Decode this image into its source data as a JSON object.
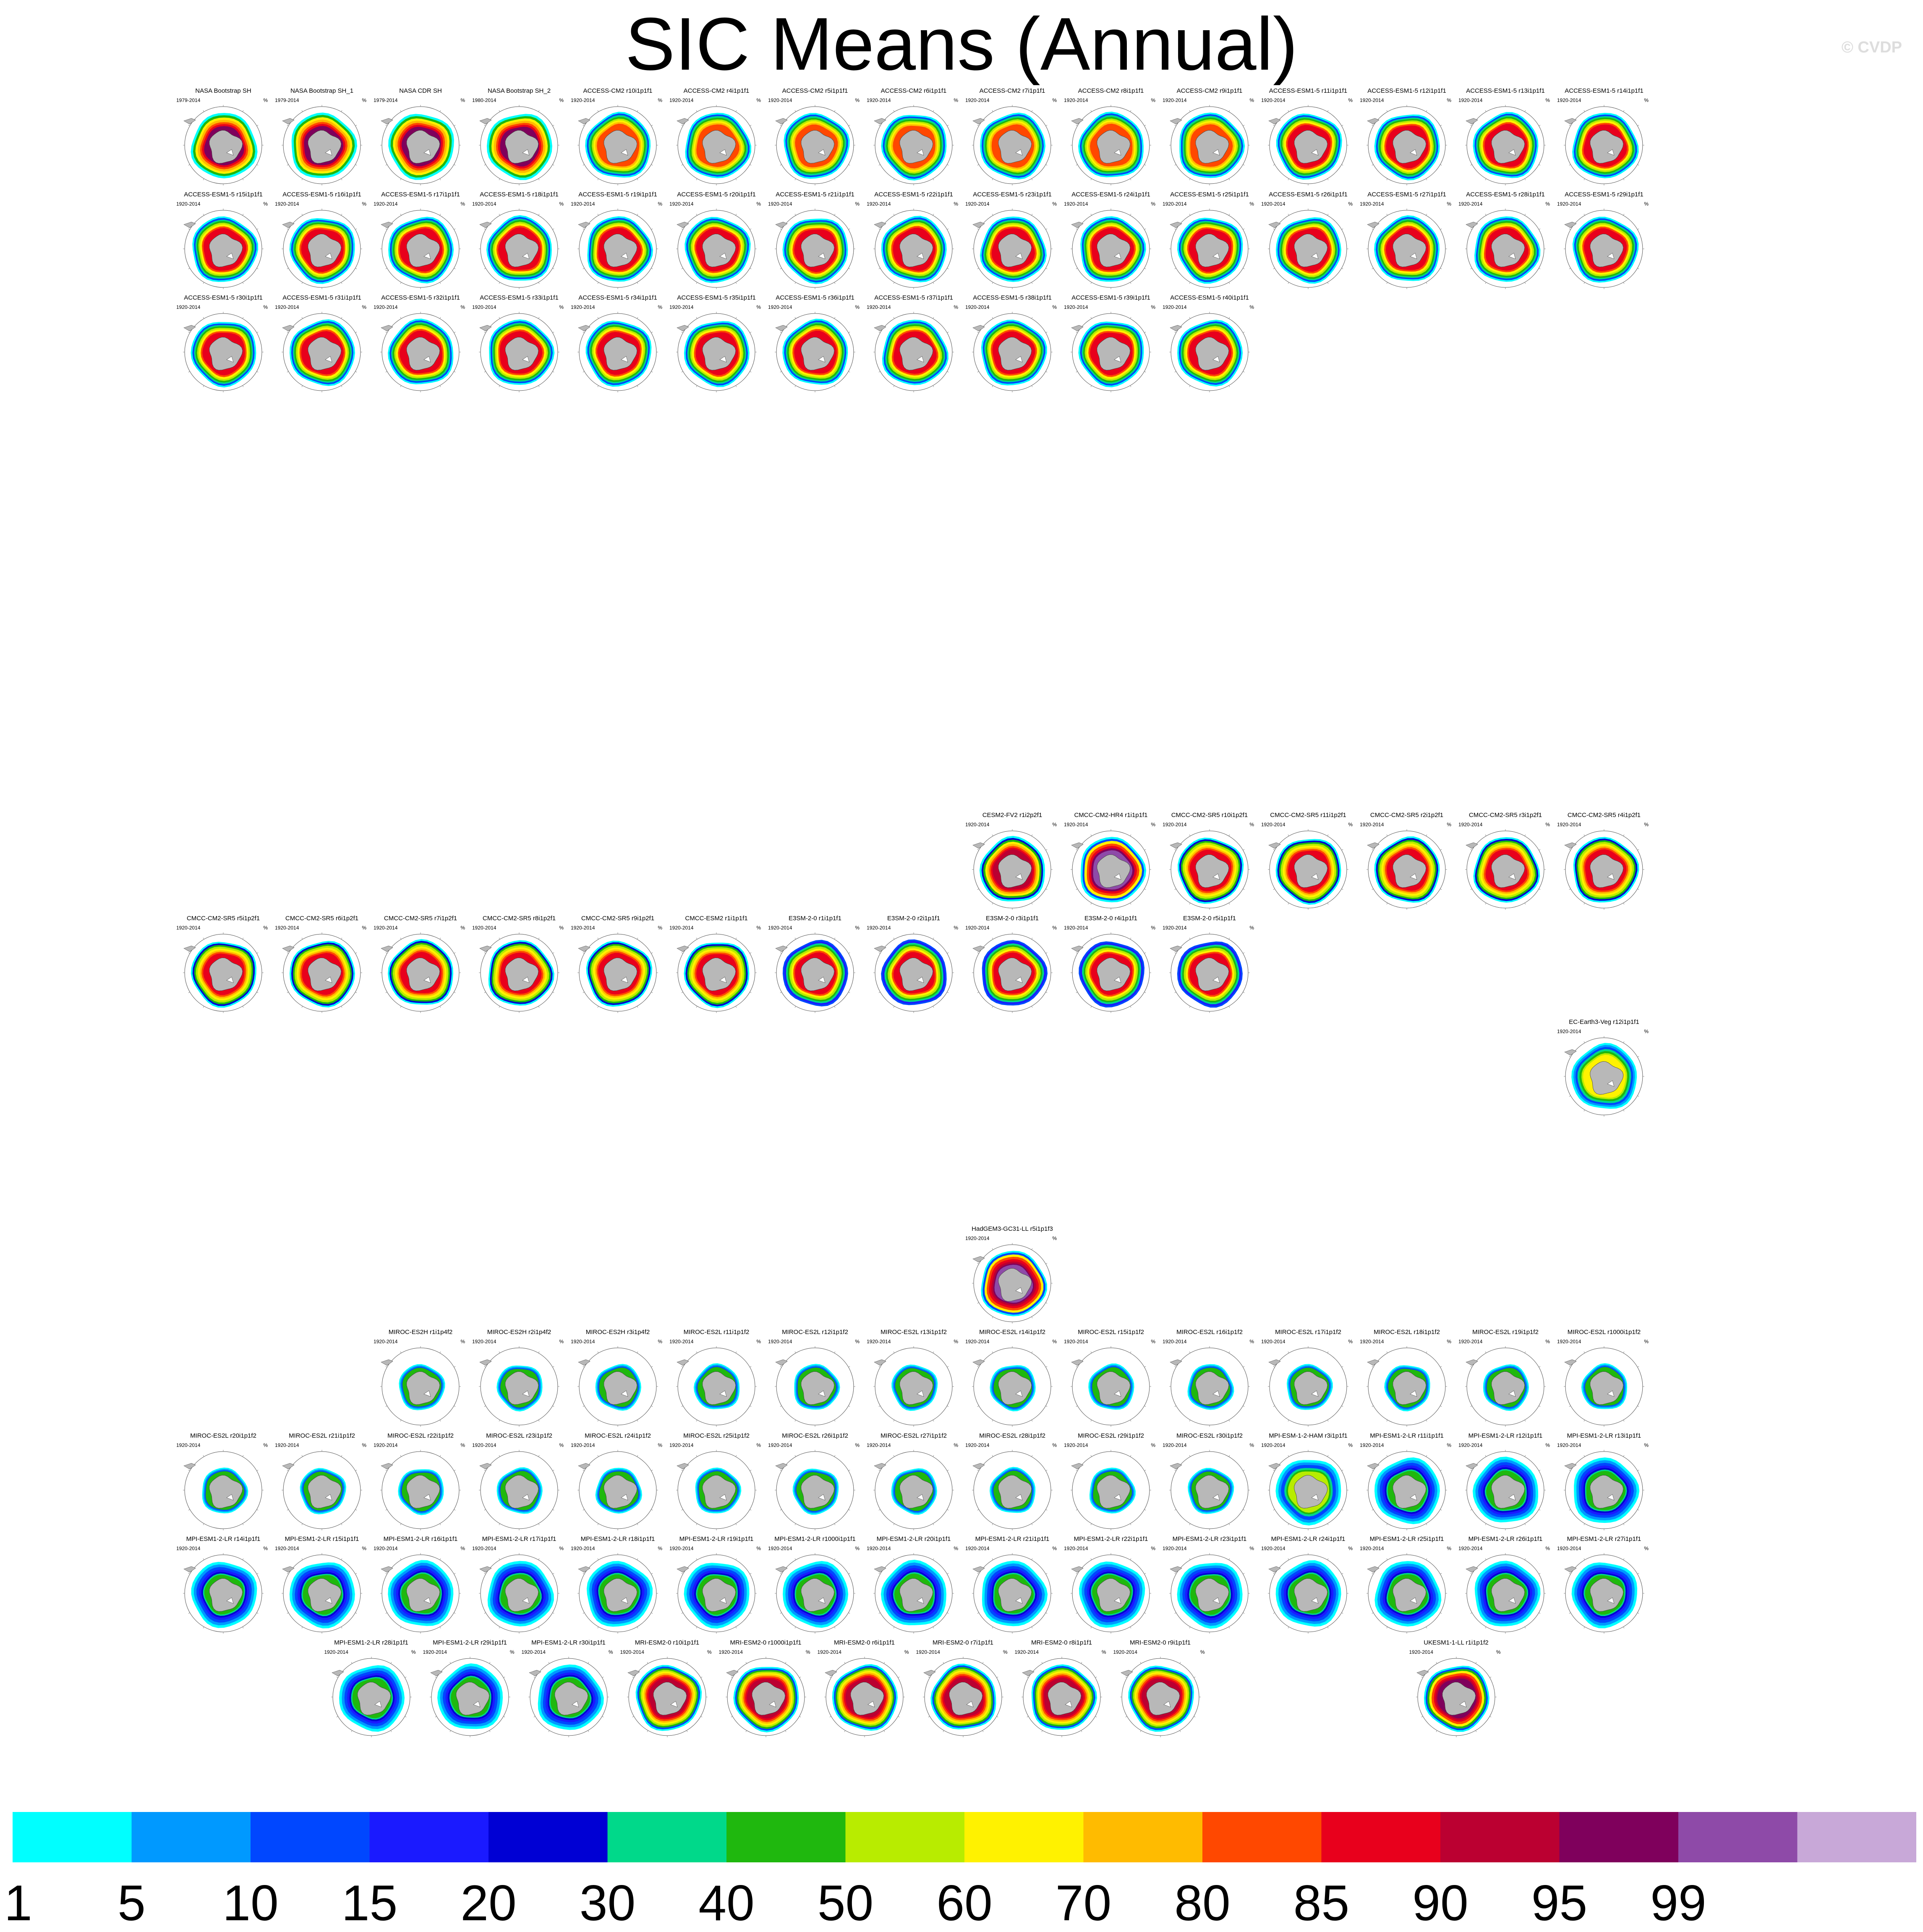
{
  "title": "SIC Means (Annual)",
  "watermark": "© CVDP",
  "chart_data": {
    "type": "heatmap",
    "title": "SIC Means (Annual)",
    "projection": "south polar stereographic",
    "variable": "sea ice concentration",
    "units": "%",
    "colorbar": {
      "orientation": "horizontal",
      "position": "bottom",
      "levels": [
        "1",
        "5",
        "10",
        "15",
        "20",
        "30",
        "40",
        "50",
        "60",
        "70",
        "80",
        "85",
        "90",
        "95",
        "99"
      ],
      "colors": [
        "#00ffff",
        "#0099ff",
        "#0047ff",
        "#1a1aff",
        "#0000d4",
        "#00d98a",
        "#1fb80e",
        "#b8ec00",
        "#fff200",
        "#ffbb00",
        "#ff4800",
        "#e8001c",
        "#bb0031",
        "#7f005c",
        "#8e4aa8",
        "#c8a8d8"
      ]
    },
    "panels": [
      {
        "row": 0,
        "col": 0,
        "title": "NASA Bootstrap SH",
        "period": "1979-2014",
        "style": "obs"
      },
      {
        "row": 0,
        "col": 1,
        "title": "NASA Bootstrap SH_1",
        "period": "1979-2014",
        "style": "obs"
      },
      {
        "row": 0,
        "col": 2,
        "title": "NASA CDR SH",
        "period": "1979-2014",
        "style": "obs"
      },
      {
        "row": 0,
        "col": 3,
        "title": "NASA Bootstrap SH_2",
        "period": "1980-2014",
        "style": "obs"
      },
      {
        "row": 0,
        "col": 4,
        "title": "ACCESS-CM2 r10i1p1f1",
        "period": "1920-2014",
        "style": "access"
      },
      {
        "row": 0,
        "col": 5,
        "title": "ACCESS-CM2 r4i1p1f1",
        "period": "1920-2014",
        "style": "access"
      },
      {
        "row": 0,
        "col": 6,
        "title": "ACCESS-CM2 r5i1p1f1",
        "period": "1920-2014",
        "style": "access"
      },
      {
        "row": 0,
        "col": 7,
        "title": "ACCESS-CM2 r6i1p1f1",
        "period": "1920-2014",
        "style": "access"
      },
      {
        "row": 0,
        "col": 8,
        "title": "ACCESS-CM2 r7i1p1f1",
        "period": "1920-2014",
        "style": "access"
      },
      {
        "row": 0,
        "col": 9,
        "title": "ACCESS-CM2 r8i1p1f1",
        "period": "1920-2014",
        "style": "access"
      },
      {
        "row": 0,
        "col": 10,
        "title": "ACCESS-CM2 r9i1p1f1",
        "period": "1920-2014",
        "style": "access"
      },
      {
        "row": 0,
        "col": 11,
        "title": "ACCESS-ESM1-5 r11i1p1f1",
        "period": "1920-2014",
        "style": "esm"
      },
      {
        "row": 0,
        "col": 12,
        "title": "ACCESS-ESM1-5 r12i1p1f1",
        "period": "1920-2014",
        "style": "esm"
      },
      {
        "row": 0,
        "col": 13,
        "title": "ACCESS-ESM1-5 r13i1p1f1",
        "period": "1920-2014",
        "style": "esm"
      },
      {
        "row": 0,
        "col": 14,
        "title": "ACCESS-ESM1-5 r14i1p1f1",
        "period": "1920-2014",
        "style": "esm"
      },
      {
        "row": 1,
        "col": 0,
        "title": "ACCESS-ESM1-5 r15i1p1f1",
        "period": "1920-2014",
        "style": "esm"
      },
      {
        "row": 1,
        "col": 1,
        "title": "ACCESS-ESM1-5 r16i1p1f1",
        "period": "1920-2014",
        "style": "esm"
      },
      {
        "row": 1,
        "col": 2,
        "title": "ACCESS-ESM1-5 r17i1p1f1",
        "period": "1920-2014",
        "style": "esm"
      },
      {
        "row": 1,
        "col": 3,
        "title": "ACCESS-ESM1-5 r18i1p1f1",
        "period": "1920-2014",
        "style": "esm"
      },
      {
        "row": 1,
        "col": 4,
        "title": "ACCESS-ESM1-5 r19i1p1f1",
        "period": "1920-2014",
        "style": "esm"
      },
      {
        "row": 1,
        "col": 5,
        "title": "ACCESS-ESM1-5 r20i1p1f1",
        "period": "1920-2014",
        "style": "esm"
      },
      {
        "row": 1,
        "col": 6,
        "title": "ACCESS-ESM1-5 r21i1p1f1",
        "period": "1920-2014",
        "style": "esm"
      },
      {
        "row": 1,
        "col": 7,
        "title": "ACCESS-ESM1-5 r22i1p1f1",
        "period": "1920-2014",
        "style": "esm"
      },
      {
        "row": 1,
        "col": 8,
        "title": "ACCESS-ESM1-5 r23i1p1f1",
        "period": "1920-2014",
        "style": "esm"
      },
      {
        "row": 1,
        "col": 9,
        "title": "ACCESS-ESM1-5 r24i1p1f1",
        "period": "1920-2014",
        "style": "esm"
      },
      {
        "row": 1,
        "col": 10,
        "title": "ACCESS-ESM1-5 r25i1p1f1",
        "period": "1920-2014",
        "style": "esm"
      },
      {
        "row": 1,
        "col": 11,
        "title": "ACCESS-ESM1-5 r26i1p1f1",
        "period": "1920-2014",
        "style": "esm"
      },
      {
        "row": 1,
        "col": 12,
        "title": "ACCESS-ESM1-5 r27i1p1f1",
        "period": "1920-2014",
        "style": "esm"
      },
      {
        "row": 1,
        "col": 13,
        "title": "ACCESS-ESM1-5 r28i1p1f1",
        "period": "1920-2014",
        "style": "esm"
      },
      {
        "row": 1,
        "col": 14,
        "title": "ACCESS-ESM1-5 r29i1p1f1",
        "period": "1920-2014",
        "style": "esm"
      },
      {
        "row": 2,
        "col": 0,
        "title": "ACCESS-ESM1-5 r30i1p1f1",
        "period": "1920-2014",
        "style": "esm"
      },
      {
        "row": 2,
        "col": 1,
        "title": "ACCESS-ESM1-5 r31i1p1f1",
        "period": "1920-2014",
        "style": "esm"
      },
      {
        "row": 2,
        "col": 2,
        "title": "ACCESS-ESM1-5 r32i1p1f1",
        "period": "1920-2014",
        "style": "esm"
      },
      {
        "row": 2,
        "col": 3,
        "title": "ACCESS-ESM1-5 r33i1p1f1",
        "period": "1920-2014",
        "style": "esm"
      },
      {
        "row": 2,
        "col": 4,
        "title": "ACCESS-ESM1-5 r34i1p1f1",
        "period": "1920-2014",
        "style": "esm"
      },
      {
        "row": 2,
        "col": 5,
        "title": "ACCESS-ESM1-5 r35i1p1f1",
        "period": "1920-2014",
        "style": "esm"
      },
      {
        "row": 2,
        "col": 6,
        "title": "ACCESS-ESM1-5 r36i1p1f1",
        "period": "1920-2014",
        "style": "esm"
      },
      {
        "row": 2,
        "col": 7,
        "title": "ACCESS-ESM1-5 r37i1p1f1",
        "period": "1920-2014",
        "style": "esm"
      },
      {
        "row": 2,
        "col": 8,
        "title": "ACCESS-ESM1-5 r38i1p1f1",
        "period": "1920-2014",
        "style": "esm"
      },
      {
        "row": 2,
        "col": 9,
        "title": "ACCESS-ESM1-5 r39i1p1f1",
        "period": "1920-2014",
        "style": "esm"
      },
      {
        "row": 2,
        "col": 10,
        "title": "ACCESS-ESM1-5 r40i1p1f1",
        "period": "1920-2014",
        "style": "esm"
      },
      {
        "row": 7,
        "col": 8,
        "title": "CESM2-FV2 r1i2p2f1",
        "period": "1920-2014",
        "style": "cesm"
      },
      {
        "row": 7,
        "col": 9,
        "title": "CMCC-CM2-HR4 r1i1p1f1",
        "period": "1920-2014",
        "style": "cmcchr"
      },
      {
        "row": 7,
        "col": 10,
        "title": "CMCC-CM2-SR5 r10i1p2f1",
        "period": "1920-2014",
        "style": "cmcc"
      },
      {
        "row": 7,
        "col": 11,
        "title": "CMCC-CM2-SR5 r11i1p2f1",
        "period": "1920-2014",
        "style": "cmcc"
      },
      {
        "row": 7,
        "col": 12,
        "title": "CMCC-CM2-SR5 r2i1p2f1",
        "period": "1920-2014",
        "style": "cmcc"
      },
      {
        "row": 7,
        "col": 13,
        "title": "CMCC-CM2-SR5 r3i1p2f1",
        "period": "1920-2014",
        "style": "cmcc"
      },
      {
        "row": 7,
        "col": 14,
        "title": "CMCC-CM2-SR5 r4i1p2f1",
        "period": "1920-2014",
        "style": "cmcc"
      },
      {
        "row": 8,
        "col": 0,
        "title": "CMCC-CM2-SR5 r5i1p2f1",
        "period": "1920-2014",
        "style": "cmcc"
      },
      {
        "row": 8,
        "col": 1,
        "title": "CMCC-CM2-SR5 r6i1p2f1",
        "period": "1920-2014",
        "style": "cmcc"
      },
      {
        "row": 8,
        "col": 2,
        "title": "CMCC-CM2-SR5 r7i1p2f1",
        "period": "1920-2014",
        "style": "cmcc"
      },
      {
        "row": 8,
        "col": 3,
        "title": "CMCC-CM2-SR5 r8i1p2f1",
        "period": "1920-2014",
        "style": "cmcc"
      },
      {
        "row": 8,
        "col": 4,
        "title": "CMCC-CM2-SR5 r9i1p2f1",
        "period": "1920-2014",
        "style": "cmcc"
      },
      {
        "row": 8,
        "col": 5,
        "title": "CMCC-ESM2 r1i1p1f1",
        "period": "1920-2014",
        "style": "cmcc"
      },
      {
        "row": 8,
        "col": 6,
        "title": "E3SM-2-0 r1i1p1f1",
        "period": "1920-2014",
        "style": "e3sm"
      },
      {
        "row": 8,
        "col": 7,
        "title": "E3SM-2-0 r2i1p1f1",
        "period": "1920-2014",
        "style": "e3sm"
      },
      {
        "row": 8,
        "col": 8,
        "title": "E3SM-2-0 r3i1p1f1",
        "period": "1920-2014",
        "style": "e3sm"
      },
      {
        "row": 8,
        "col": 9,
        "title": "E3SM-2-0 r4i1p1f1",
        "period": "1920-2014",
        "style": "e3sm"
      },
      {
        "row": 8,
        "col": 10,
        "title": "E3SM-2-0 r5i1p1f1",
        "period": "1920-2014",
        "style": "e3sm"
      },
      {
        "row": 9,
        "col": 14,
        "title": "EC-Earth3-Veg r12i1p1f1",
        "period": "1920-2014",
        "style": "ecearth"
      },
      {
        "row": 11,
        "col": 8,
        "title": "HadGEM3-GC31-LL r5i1p1f3",
        "period": "1920-2014",
        "style": "hadgem"
      },
      {
        "row": 12,
        "col": 2,
        "title": "MIROC-ES2H r1i1p4f2",
        "period": "1920-2014",
        "style": "miroc"
      },
      {
        "row": 12,
        "col": 3,
        "title": "MIROC-ES2H r2i1p4f2",
        "period": "1920-2014",
        "style": "miroc"
      },
      {
        "row": 12,
        "col": 4,
        "title": "MIROC-ES2H r3i1p4f2",
        "period": "1920-2014",
        "style": "miroc"
      },
      {
        "row": 12,
        "col": 5,
        "title": "MIROC-ES2L r11i1p1f2",
        "period": "1920-2014",
        "style": "miroc"
      },
      {
        "row": 12,
        "col": 6,
        "title": "MIROC-ES2L r12i1p1f2",
        "period": "1920-2014",
        "style": "miroc"
      },
      {
        "row": 12,
        "col": 7,
        "title": "MIROC-ES2L r13i1p1f2",
        "period": "1920-2014",
        "style": "miroc"
      },
      {
        "row": 12,
        "col": 8,
        "title": "MIROC-ES2L r14i1p1f2",
        "period": "1920-2014",
        "style": "miroc"
      },
      {
        "row": 12,
        "col": 9,
        "title": "MIROC-ES2L r15i1p1f2",
        "period": "1920-2014",
        "style": "miroc"
      },
      {
        "row": 12,
        "col": 10,
        "title": "MIROC-ES2L r16i1p1f2",
        "period": "1920-2014",
        "style": "miroc"
      },
      {
        "row": 12,
        "col": 11,
        "title": "MIROC-ES2L r17i1p1f2",
        "period": "1920-2014",
        "style": "miroc"
      },
      {
        "row": 12,
        "col": 12,
        "title": "MIROC-ES2L r18i1p1f2",
        "period": "1920-2014",
        "style": "miroc"
      },
      {
        "row": 12,
        "col": 13,
        "title": "MIROC-ES2L r19i1p1f2",
        "period": "1920-2014",
        "style": "miroc"
      },
      {
        "row": 12,
        "col": 14,
        "title": "MIROC-ES2L r1000i1p1f2",
        "period": "1920-2014",
        "style": "miroc"
      },
      {
        "row": 13,
        "col": 0,
        "title": "MIROC-ES2L r20i1p1f2",
        "period": "1920-2014",
        "style": "miroc"
      },
      {
        "row": 13,
        "col": 1,
        "title": "MIROC-ES2L r21i1p1f2",
        "period": "1920-2014",
        "style": "miroc"
      },
      {
        "row": 13,
        "col": 2,
        "title": "MIROC-ES2L r22i1p1f2",
        "period": "1920-2014",
        "style": "miroc"
      },
      {
        "row": 13,
        "col": 3,
        "title": "MIROC-ES2L r23i1p1f2",
        "period": "1920-2014",
        "style": "miroc"
      },
      {
        "row": 13,
        "col": 4,
        "title": "MIROC-ES2L r24i1p1f2",
        "period": "1920-2014",
        "style": "miroc"
      },
      {
        "row": 13,
        "col": 5,
        "title": "MIROC-ES2L r25i1p1f2",
        "period": "1920-2014",
        "style": "miroc"
      },
      {
        "row": 13,
        "col": 6,
        "title": "MIROC-ES2L r26i1p1f2",
        "period": "1920-2014",
        "style": "miroc"
      },
      {
        "row": 13,
        "col": 7,
        "title": "MIROC-ES2L r27i1p1f2",
        "period": "1920-2014",
        "style": "miroc"
      },
      {
        "row": 13,
        "col": 8,
        "title": "MIROC-ES2L r28i1p1f2",
        "period": "1920-2014",
        "style": "miroc"
      },
      {
        "row": 13,
        "col": 9,
        "title": "MIROC-ES2L r29i1p1f2",
        "period": "1920-2014",
        "style": "miroc"
      },
      {
        "row": 13,
        "col": 10,
        "title": "MIROC-ES2L r30i1p1f2",
        "period": "1920-2014",
        "style": "miroc"
      },
      {
        "row": 13,
        "col": 11,
        "title": "MPI-ESM-1-2-HAM r3i1p1f1",
        "period": "1920-2014",
        "style": "mpiham"
      },
      {
        "row": 13,
        "col": 12,
        "title": "MPI-ESM1-2-LR r11i1p1f1",
        "period": "1920-2014",
        "style": "mpi"
      },
      {
        "row": 13,
        "col": 13,
        "title": "MPI-ESM1-2-LR r12i1p1f1",
        "period": "1920-2014",
        "style": "mpi"
      },
      {
        "row": 13,
        "col": 14,
        "title": "MPI-ESM1-2-LR r13i1p1f1",
        "period": "1920-2014",
        "style": "mpi"
      },
      {
        "row": 14,
        "col": 0,
        "title": "MPI-ESM1-2-LR r14i1p1f1",
        "period": "1920-2014",
        "style": "mpi"
      },
      {
        "row": 14,
        "col": 1,
        "title": "MPI-ESM1-2-LR r15i1p1f1",
        "period": "1920-2014",
        "style": "mpi"
      },
      {
        "row": 14,
        "col": 2,
        "title": "MPI-ESM1-2-LR r16i1p1f1",
        "period": "1920-2014",
        "style": "mpi"
      },
      {
        "row": 14,
        "col": 3,
        "title": "MPI-ESM1-2-LR r17i1p1f1",
        "period": "1920-2014",
        "style": "mpi"
      },
      {
        "row": 14,
        "col": 4,
        "title": "MPI-ESM1-2-LR r18i1p1f1",
        "period": "1920-2014",
        "style": "mpi"
      },
      {
        "row": 14,
        "col": 5,
        "title": "MPI-ESM1-2-LR r19i1p1f1",
        "period": "1920-2014",
        "style": "mpi"
      },
      {
        "row": 14,
        "col": 6,
        "title": "MPI-ESM1-2-LR r1000i1p1f1",
        "period": "1920-2014",
        "style": "mpi"
      },
      {
        "row": 14,
        "col": 7,
        "title": "MPI-ESM1-2-LR r20i1p1f1",
        "period": "1920-2014",
        "style": "mpi"
      },
      {
        "row": 14,
        "col": 8,
        "title": "MPI-ESM1-2-LR r21i1p1f1",
        "period": "1920-2014",
        "style": "mpi"
      },
      {
        "row": 14,
        "col": 9,
        "title": "MPI-ESM1-2-LR r22i1p1f1",
        "period": "1920-2014",
        "style": "mpi"
      },
      {
        "row": 14,
        "col": 10,
        "title": "MPI-ESM1-2-LR r23i1p1f1",
        "period": "1920-2014",
        "style": "mpi"
      },
      {
        "row": 14,
        "col": 11,
        "title": "MPI-ESM1-2-LR r24i1p1f1",
        "period": "1920-2014",
        "style": "mpi"
      },
      {
        "row": 14,
        "col": 12,
        "title": "MPI-ESM1-2-LR r25i1p1f1",
        "period": "1920-2014",
        "style": "mpi"
      },
      {
        "row": 14,
        "col": 13,
        "title": "MPI-ESM1-2-LR r26i1p1f1",
        "period": "1920-2014",
        "style": "mpi"
      },
      {
        "row": 14,
        "col": 14,
        "title": "MPI-ESM1-2-LR r27i1p1f1",
        "period": "1920-2014",
        "style": "mpi"
      },
      {
        "row": 15,
        "col": 1.5,
        "title": "MPI-ESM1-2-LR r28i1p1f1",
        "period": "1920-2014",
        "style": "mpi"
      },
      {
        "row": 15,
        "col": 2.5,
        "title": "MPI-ESM1-2-LR r29i1p1f1",
        "period": "1920-2014",
        "style": "mpi"
      },
      {
        "row": 15,
        "col": 3.5,
        "title": "MPI-ESM1-2-LR r30i1p1f1",
        "period": "1920-2014",
        "style": "mpi"
      },
      {
        "row": 15,
        "col": 4.5,
        "title": "MRI-ESM2-0 r10i1p1f1",
        "period": "1920-2014",
        "style": "mri"
      },
      {
        "row": 15,
        "col": 5.5,
        "title": "MRI-ESM2-0 r1000i1p1f1",
        "period": "1920-2014",
        "style": "mri"
      },
      {
        "row": 15,
        "col": 6.5,
        "title": "MRI-ESM2-0 r6i1p1f1",
        "period": "1920-2014",
        "style": "mri"
      },
      {
        "row": 15,
        "col": 7.5,
        "title": "MRI-ESM2-0 r7i1p1f1",
        "period": "1920-2014",
        "style": "mri"
      },
      {
        "row": 15,
        "col": 8.5,
        "title": "MRI-ESM2-0 r8i1p1f1",
        "period": "1920-2014",
        "style": "mri"
      },
      {
        "row": 15,
        "col": 9.5,
        "title": "MRI-ESM2-0 r9i1p1f1",
        "period": "1920-2014",
        "style": "mri"
      },
      {
        "row": 15,
        "col": 12.5,
        "title": "UKESM1-1-LL r1i1p1f2",
        "period": "1920-2014",
        "style": "ukesm"
      }
    ]
  }
}
